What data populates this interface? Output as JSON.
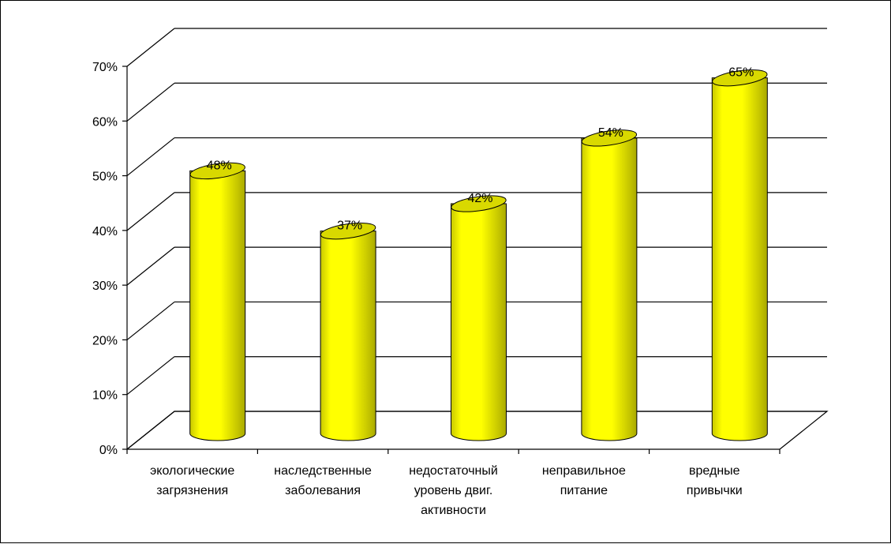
{
  "chart_data": {
    "type": "bar",
    "style": "3d-cylinder",
    "categories": [
      [
        "экологические",
        "загрязнения"
      ],
      [
        "наследственные",
        "заболевания"
      ],
      [
        "недостаточный",
        "уровень двиг.",
        "активности"
      ],
      [
        "неправильное",
        "питание"
      ],
      [
        "вредные",
        "привычки"
      ]
    ],
    "values": [
      48,
      37,
      42,
      54,
      65
    ],
    "data_labels": [
      "48%",
      "37%",
      "42%",
      "54%",
      "65%"
    ],
    "y_ticks": [
      "0%",
      "10%",
      "20%",
      "30%",
      "40%",
      "50%",
      "60%",
      "70%"
    ],
    "ylim": [
      0,
      70
    ],
    "y_unit": "%",
    "grid": true,
    "legend": "none",
    "title": "",
    "xlabel": "",
    "ylabel": "",
    "colors": {
      "bar_face": "#ffff00",
      "bar_shade": "#c8c800",
      "bar_top": "#d9d900",
      "outline": "#000000",
      "grid": "#000000",
      "background": "#ffffff"
    }
  }
}
